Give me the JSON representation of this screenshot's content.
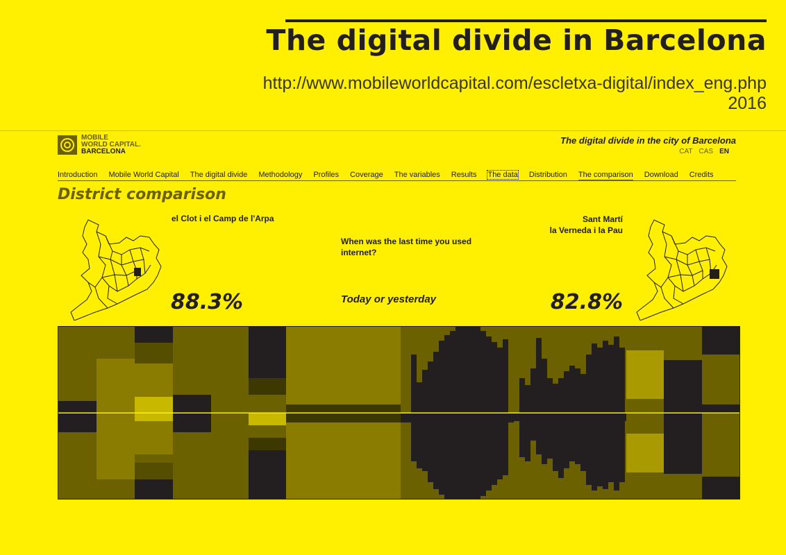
{
  "slide": {
    "title": "The digital divide in Barcelona",
    "url": "http://www.mobileworldcapital.com/escletxa-digital/index_eng.php",
    "year": "2016"
  },
  "site": {
    "logo_lines": [
      "MOBILE",
      "WORLD CAPITAL.",
      "BARCELONA"
    ],
    "title": "The digital divide in the city of Barcelona",
    "languages": [
      "CAT",
      "CAS",
      "EN"
    ],
    "active_language": "EN"
  },
  "nav": {
    "items": [
      "Introduction",
      "Mobile World Capital",
      "The digital divide",
      "Methodology",
      "Profiles",
      "Coverage",
      "The variables",
      "Results",
      "The data",
      "Distribution",
      "The comparison",
      "Download",
      "Credits"
    ],
    "current": "The comparison",
    "boxed": "The data"
  },
  "comparison": {
    "section_title": "District comparison",
    "left_district": "el Clot i el Camp de l'Arpa",
    "right_district_line1": "Sant Martí",
    "right_district_line2": "la Verneda i la Pau",
    "question": "When was the last time you used internet?",
    "answer": "Today or yesterday",
    "left_value": "88.3%",
    "right_value": "82.8%"
  },
  "colors": {
    "background": "#ffef00",
    "dark": "#231f20",
    "olive": "#6b6100",
    "olive_mid": "#8a7c00",
    "olive_light": "#a89a00",
    "highlight": "#c8b800"
  },
  "icons": {
    "logo": "mwc-logo-icon",
    "map_left": "barcelona-map-icon",
    "map_right": "barcelona-map-icon"
  }
}
